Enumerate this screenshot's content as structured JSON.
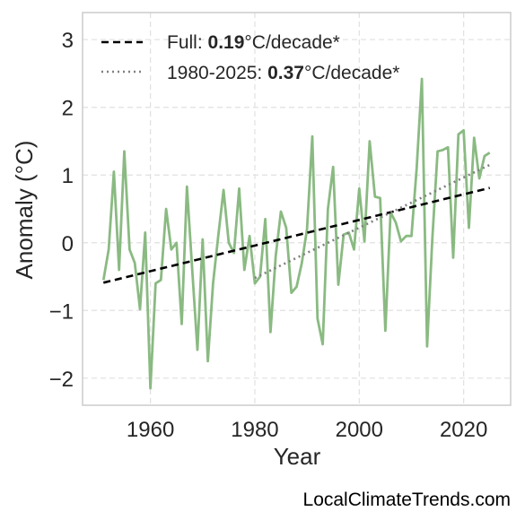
{
  "chart_data": {
    "type": "line",
    "title": "",
    "xlabel": "Year",
    "ylabel": "Anomaly (°C)",
    "xlim": [
      1947,
      2029
    ],
    "ylim": [
      -2.4,
      3.4
    ],
    "x_ticks": [
      1960,
      1980,
      2000,
      2020
    ],
    "y_ticks": [
      3,
      2,
      1,
      0,
      -1,
      -2
    ],
    "y_tick_labels": [
      "3",
      "2",
      "1",
      "0",
      "−1",
      "−2"
    ],
    "grid": true,
    "legend_position": "top-left",
    "colors": {
      "series": "#8aba82",
      "full_trend": "#000000",
      "recent_trend": "#808080"
    },
    "series": [
      {
        "x": [
          1951,
          1952,
          1953,
          1954,
          1955,
          1956,
          1957,
          1958,
          1959,
          1960,
          1961,
          1962,
          1963,
          1964,
          1965,
          1966,
          1967,
          1968,
          1969,
          1970,
          1971,
          1972,
          1973,
          1974,
          1975,
          1976,
          1977,
          1978,
          1979,
          1980,
          1981,
          1982,
          1983,
          1984,
          1985,
          1986,
          1987,
          1988,
          1989,
          1990,
          1991,
          1992,
          1993,
          1994,
          1995,
          1996,
          1997,
          1998,
          1999,
          2000,
          2001,
          2002,
          2003,
          2004,
          2005,
          2006,
          2007,
          2008,
          2009,
          2010,
          2011,
          2012,
          2013,
          2014,
          2015,
          2016,
          2017,
          2018,
          2019,
          2020,
          2021,
          2022,
          2023,
          2024,
          2025
        ],
        "values": [
          -0.55,
          -0.1,
          1.05,
          -0.4,
          1.35,
          -0.1,
          -0.3,
          -0.98,
          0.15,
          -2.15,
          -0.6,
          -0.55,
          0.5,
          -0.1,
          0.0,
          -1.2,
          0.83,
          -0.4,
          -1.58,
          0.05,
          -1.75,
          -0.6,
          0.1,
          0.78,
          0.0,
          -0.15,
          0.8,
          -0.4,
          0.1,
          -0.6,
          -0.5,
          0.35,
          -1.32,
          -0.2,
          0.46,
          0.22,
          -0.74,
          -0.65,
          -0.3,
          0.2,
          1.57,
          -1.12,
          -1.5,
          0.5,
          1.12,
          -0.62,
          0.12,
          0.15,
          -0.1,
          0.8,
          0.02,
          1.5,
          0.68,
          0.66,
          -1.3,
          0.45,
          0.3,
          0.02,
          0.1,
          0.1,
          1.1,
          2.42,
          -1.53,
          0.05,
          1.35,
          1.37,
          1.41,
          -0.22,
          1.6,
          1.66,
          0.22,
          1.55,
          0.95,
          1.28,
          1.33
        ]
      }
    ],
    "trend_lines": [
      {
        "x": [
          1951,
          2025
        ],
        "values": [
          -0.59,
          0.81
        ]
      },
      {
        "x": [
          1980,
          2025
        ],
        "values": [
          -0.52,
          1.15
        ]
      }
    ],
    "legend": [
      {
        "prefix": "Full: ",
        "value": "0.19",
        "suffix": "°C/decade*"
      },
      {
        "prefix": "1980-2025: ",
        "value": "0.37",
        "suffix": "°C/decade*"
      }
    ]
  },
  "watermark": "LocalClimateTrends.com"
}
